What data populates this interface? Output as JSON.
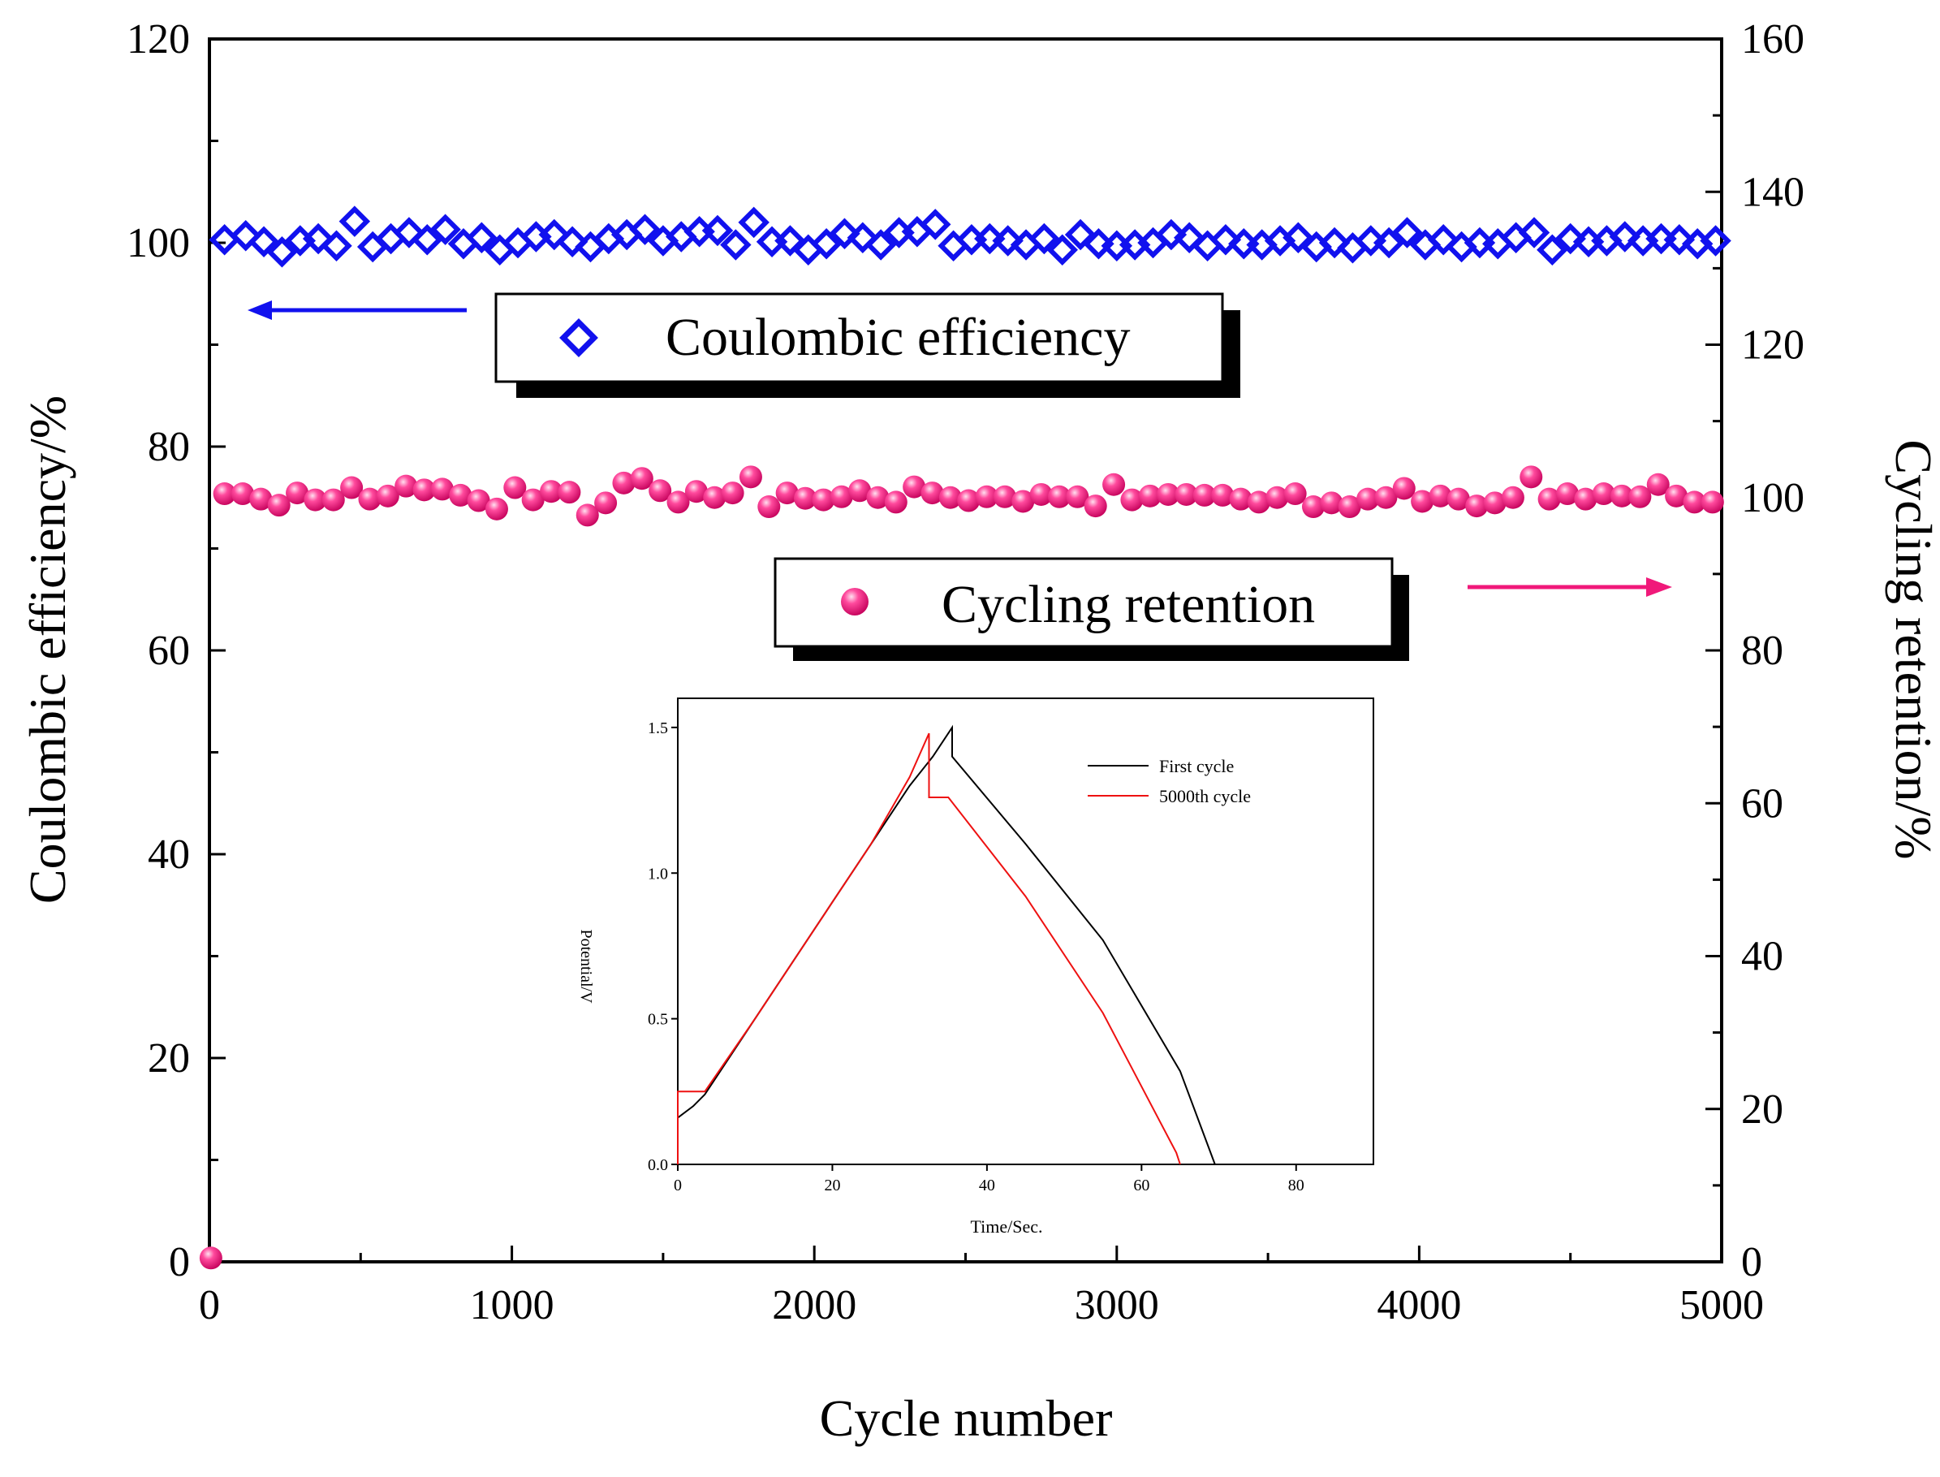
{
  "chart_data": {
    "type": "scatter",
    "xlabel": "Cycle number",
    "ylabel_left": "Coulombic efficiency/%",
    "ylabel_right": "Cycling retention/%",
    "xlim": [
      0,
      5000
    ],
    "ylim_left": [
      0,
      120
    ],
    "ylim_right": [
      0,
      160
    ],
    "x_ticks": [
      "0",
      "1000",
      "2000",
      "3000",
      "4000",
      "5000"
    ],
    "y_left_ticks": [
      "0",
      "20",
      "40",
      "60",
      "80",
      "100",
      "120"
    ],
    "y_right_ticks": [
      "0",
      "20",
      "40",
      "60",
      "80",
      "100",
      "120",
      "140",
      "160"
    ],
    "series": [
      {
        "name": "Coulombic efficiency",
        "axis": "left",
        "marker": "diamond-open",
        "color": "#1111ee",
        "x": [
          50,
          120,
          180,
          240,
          300,
          360,
          420,
          480,
          540,
          600,
          660,
          720,
          780,
          840,
          900,
          960,
          1020,
          1080,
          1140,
          1200,
          1260,
          1320,
          1380,
          1440,
          1500,
          1560,
          1620,
          1680,
          1740,
          1800,
          1860,
          1920,
          1980,
          2040,
          2100,
          2160,
          2220,
          2280,
          2340,
          2400,
          2460,
          2520,
          2580,
          2640,
          2700,
          2760,
          2820,
          2880,
          2940,
          3000,
          3060,
          3120,
          3180,
          3240,
          3300,
          3360,
          3420,
          3480,
          3540,
          3600,
          3660,
          3720,
          3780,
          3840,
          3900,
          3960,
          4020,
          4080,
          4140,
          4200,
          4260,
          4320,
          4380,
          4440,
          4500,
          4560,
          4620,
          4680,
          4740,
          4800,
          4860,
          4920,
          4980
        ],
        "y": [
          100.3,
          100.7,
          100.1,
          99.1,
          100.2,
          100.4,
          99.7,
          102.1,
          99.6,
          100.4,
          101.0,
          100.3,
          101.3,
          99.9,
          100.5,
          99.3,
          100.0,
          100.6,
          100.8,
          100.1,
          99.6,
          100.4,
          100.8,
          101.3,
          100.2,
          100.6,
          101.1,
          101.2,
          99.8,
          102.0,
          100.1,
          100.2,
          99.3,
          99.9,
          100.9,
          100.5,
          99.8,
          101.0,
          101.1,
          101.8,
          99.7,
          100.3,
          100.4,
          100.2,
          99.8,
          100.4,
          99.3,
          100.8,
          99.9,
          99.7,
          99.8,
          100.0,
          100.8,
          100.5,
          99.7,
          100.3,
          99.9,
          99.8,
          100.2,
          100.5,
          99.6,
          100.0,
          99.5,
          100.2,
          100.0,
          101.0,
          99.8,
          100.3,
          99.6,
          100.0,
          99.9,
          100.5,
          101.0,
          99.3,
          100.4,
          100.1,
          100.2,
          100.6,
          100.2,
          100.4,
          100.3,
          99.9,
          100.2
        ]
      },
      {
        "name": "Cycling retention",
        "axis": "right",
        "marker": "sphere",
        "color": "#f0197a",
        "x": [
          5,
          50,
          110,
          170,
          230,
          290,
          350,
          410,
          470,
          530,
          590,
          650,
          710,
          770,
          830,
          890,
          950,
          1010,
          1070,
          1130,
          1190,
          1250,
          1310,
          1370,
          1430,
          1490,
          1550,
          1610,
          1670,
          1730,
          1790,
          1850,
          1910,
          1970,
          2030,
          2090,
          2150,
          2210,
          2270,
          2330,
          2390,
          2450,
          2510,
          2570,
          2630,
          2690,
          2750,
          2810,
          2870,
          2930,
          2990,
          3050,
          3110,
          3170,
          3230,
          3290,
          3350,
          3410,
          3470,
          3530,
          3590,
          3650,
          3710,
          3770,
          3830,
          3890,
          3950,
          4010,
          4070,
          4130,
          4190,
          4250,
          4310,
          4370,
          4430,
          4490,
          4550,
          4610,
          4670,
          4730,
          4790,
          4850,
          4910,
          4970
        ],
        "y": [
          0.5,
          100.5,
          100.5,
          99.8,
          99.0,
          100.6,
          99.7,
          99.7,
          101.3,
          99.8,
          100.2,
          101.5,
          101.0,
          101.1,
          100.3,
          99.6,
          98.5,
          101.3,
          99.7,
          100.8,
          100.7,
          97.7,
          99.3,
          101.9,
          102.5,
          100.9,
          99.4,
          100.8,
          100.0,
          100.6,
          102.7,
          98.8,
          100.6,
          99.9,
          99.7,
          100.1,
          100.9,
          100.0,
          99.4,
          101.4,
          100.6,
          100.0,
          99.6,
          100.1,
          100.1,
          99.5,
          100.4,
          100.1,
          100.1,
          98.9,
          101.7,
          99.7,
          100.2,
          100.4,
          100.4,
          100.3,
          100.3,
          99.8,
          99.4,
          100.0,
          100.5,
          98.8,
          99.3,
          98.8,
          99.8,
          100.0,
          101.2,
          99.5,
          100.2,
          99.8,
          98.9,
          99.3,
          100.0,
          102.7,
          99.8,
          100.5,
          99.8,
          100.5,
          100.2,
          100.1,
          101.7,
          100.2,
          99.4,
          99.4
        ]
      }
    ],
    "legend": [
      {
        "label": "Coulombic efficiency",
        "placement": "upper-middle"
      },
      {
        "label": "Cycling retention",
        "placement": "middle"
      }
    ],
    "inset": {
      "type": "line",
      "xlabel": "Time/Sec.",
      "ylabel": "Potential/V",
      "xlim": [
        0,
        90
      ],
      "ylim": [
        0,
        1.6
      ],
      "x_ticks": [
        "0",
        "20",
        "40",
        "60",
        "80"
      ],
      "y_ticks": [
        "0.0",
        "0.5",
        "1.0",
        "1.5"
      ],
      "series": [
        {
          "name": "First cycle",
          "color": "#000000",
          "points": [
            [
              0,
              0.16
            ],
            [
              2,
              0.2
            ],
            [
              3.5,
              0.24
            ],
            [
              10,
              0.5
            ],
            [
              20,
              0.9
            ],
            [
              25,
              1.1
            ],
            [
              30,
              1.3
            ],
            [
              33,
              1.4
            ],
            [
              35.5,
              1.5
            ],
            [
              35.5,
              1.4
            ],
            [
              45,
              1.1
            ],
            [
              55,
              0.77
            ],
            [
              65,
              0.32
            ],
            [
              69.5,
              0.0
            ]
          ]
        },
        {
          "name": "5000th cycle",
          "color": "#ee1111",
          "points": [
            [
              0,
              0.0
            ],
            [
              0,
              0.25
            ],
            [
              3.5,
              0.25
            ],
            [
              10,
              0.5
            ],
            [
              20,
              0.9
            ],
            [
              25,
              1.1
            ],
            [
              30,
              1.33
            ],
            [
              32.5,
              1.48
            ],
            [
              32.5,
              1.26
            ],
            [
              35,
              1.26
            ],
            [
              45,
              0.92
            ],
            [
              55,
              0.52
            ],
            [
              64.5,
              0.04
            ],
            [
              65,
              0.0
            ]
          ]
        }
      ]
    },
    "colors": {
      "axis": "#000000",
      "ce": "#1111ee",
      "retention": "#f0197a",
      "first_cycle": "#000000",
      "cycle_5000": "#ee1111"
    }
  }
}
